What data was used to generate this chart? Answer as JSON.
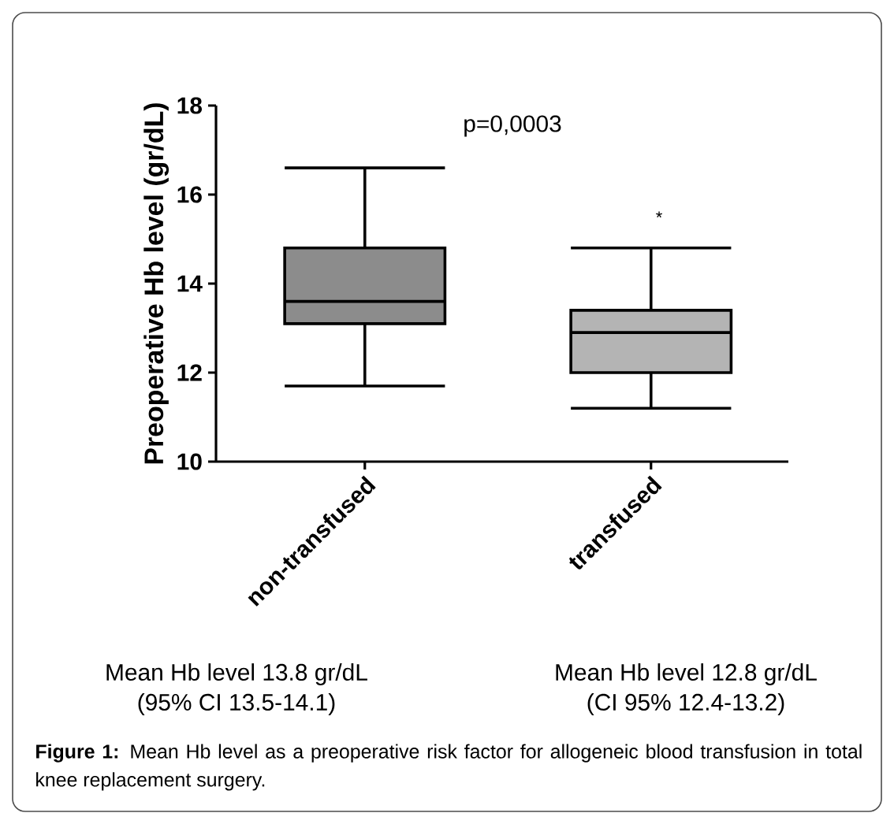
{
  "chart_data": {
    "type": "box",
    "ylabel": "Preoperative Hb level (gr/dL)",
    "categories": [
      "non-transfused",
      "transfused"
    ],
    "boxes": [
      {
        "low": 11.7,
        "q1": 13.1,
        "median": 13.6,
        "q3": 14.8,
        "high": 16.6
      },
      {
        "low": 11.2,
        "q1": 12.0,
        "median": 12.9,
        "q3": 13.4,
        "high": 14.8
      }
    ],
    "colors": [
      "#8c8c8c",
      "#b4b4b4"
    ],
    "ylim": [
      10,
      18
    ],
    "yticks": [
      10,
      12,
      14,
      16,
      18
    ],
    "annotations": [
      "p=0,0003",
      "*",
      "Mean Hb level 13.8 gr/dL",
      "(95% CI 13.5-14.1)",
      "Mean Hb level 12.8 gr/dL",
      "(CI 95% 12.4-13.2)",
      "**Figure 1:** Mean Hb level as a preoperative risk factor for allogeneic blood transfusion in total knee replacement surgery."
    ]
  }
}
